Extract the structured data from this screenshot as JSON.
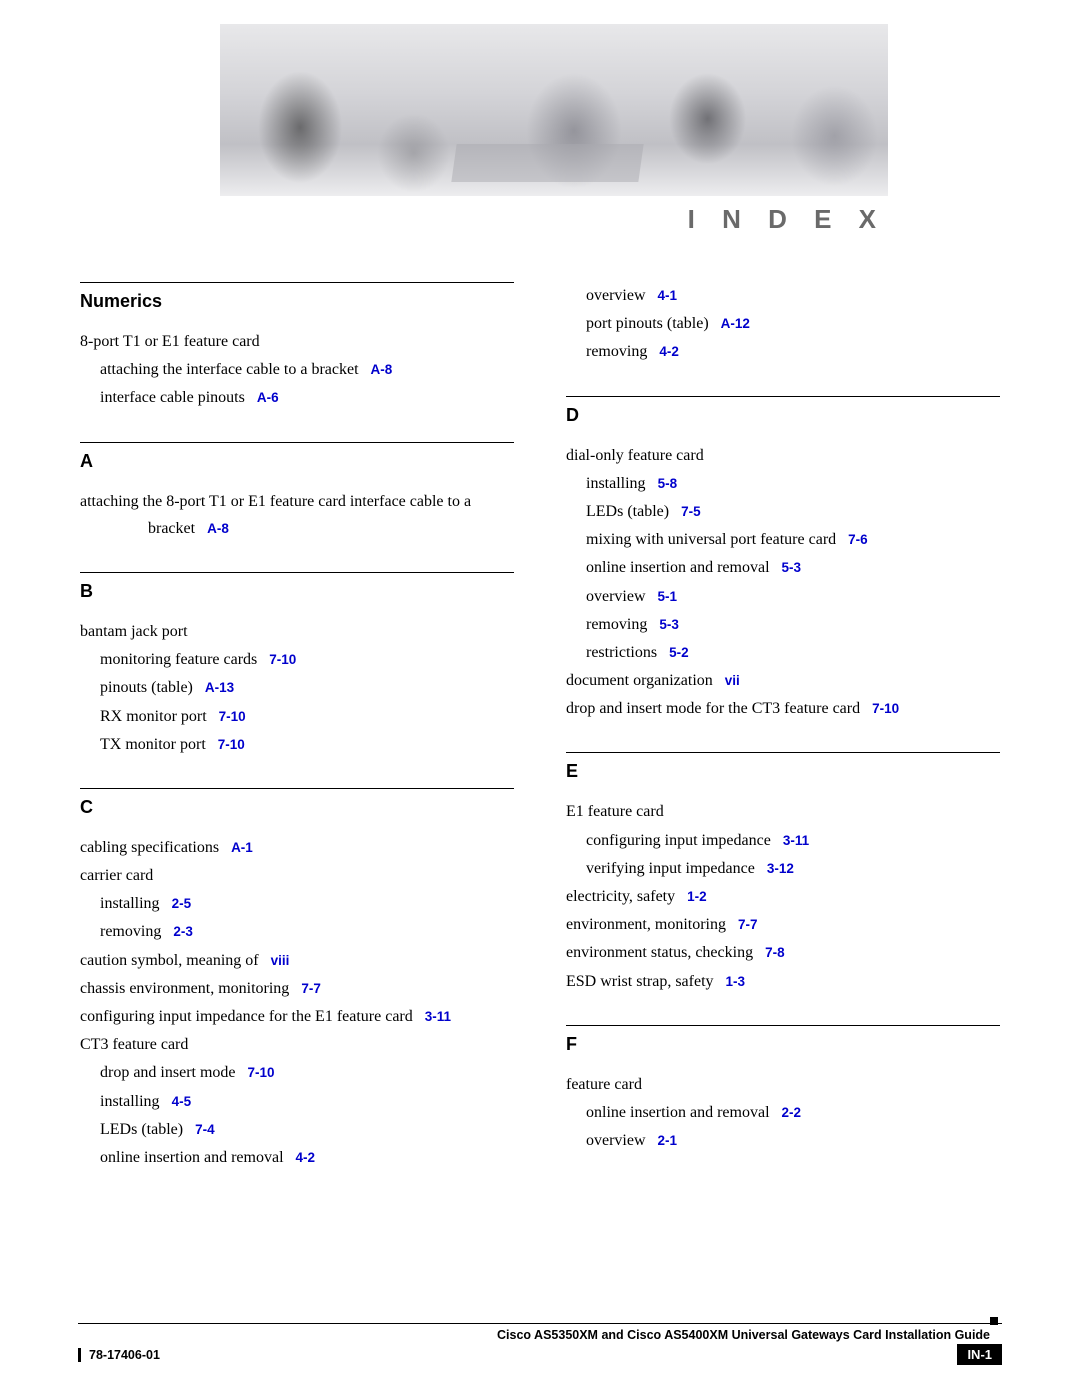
{
  "page": {
    "index_title": "I N D E X",
    "footer_title": "Cisco AS5350XM and Cisco AS5400XM Universal Gateways Card Installation Guide",
    "doc_number": "78-17406-01",
    "page_number": "IN-1"
  },
  "colors": {
    "link": "#0000cc",
    "text": "#000000",
    "heading_gray": "#6a6a6a",
    "banner_bg": "#d4d4d8",
    "page_bg": "#ffffff"
  },
  "left": {
    "sections": [
      {
        "head": "Numerics",
        "entries": [
          {
            "level": 1,
            "text": "8-port T1 or E1 feature card",
            "ref": null
          },
          {
            "level": 2,
            "text": "attaching the interface cable to a bracket",
            "ref": "A-8"
          },
          {
            "level": 2,
            "text": "interface cable pinouts",
            "ref": "A-6"
          }
        ]
      },
      {
        "head": "A",
        "entries": [
          {
            "level": 1,
            "hang": true,
            "text": "attaching the 8-port T1 or E1 feature card interface cable to a bracket",
            "ref": "A-8"
          }
        ]
      },
      {
        "head": "B",
        "entries": [
          {
            "level": 1,
            "text": "bantam jack port",
            "ref": null
          },
          {
            "level": 2,
            "text": "monitoring feature cards",
            "ref": "7-10"
          },
          {
            "level": 2,
            "text": "pinouts (table)",
            "ref": "A-13"
          },
          {
            "level": 2,
            "text": "RX monitor port",
            "ref": "7-10"
          },
          {
            "level": 2,
            "text": "TX monitor port",
            "ref": "7-10"
          }
        ]
      },
      {
        "head": "C",
        "entries": [
          {
            "level": 1,
            "text": "cabling specifications",
            "ref": "A-1"
          },
          {
            "level": 1,
            "text": "carrier card",
            "ref": null
          },
          {
            "level": 2,
            "text": "installing",
            "ref": "2-5"
          },
          {
            "level": 2,
            "text": "removing",
            "ref": "2-3"
          },
          {
            "level": 1,
            "text": "caution symbol, meaning of",
            "ref": "viii"
          },
          {
            "level": 1,
            "text": "chassis environment, monitoring",
            "ref": "7-7"
          },
          {
            "level": 1,
            "text": "configuring input impedance for the E1 feature card",
            "ref": "3-11"
          },
          {
            "level": 1,
            "text": "CT3 feature card",
            "ref": null
          },
          {
            "level": 2,
            "text": "drop and insert mode",
            "ref": "7-10"
          },
          {
            "level": 2,
            "text": "installing",
            "ref": "4-5"
          },
          {
            "level": 2,
            "text": "LEDs (table)",
            "ref": "7-4"
          },
          {
            "level": 2,
            "text": "online insertion and removal",
            "ref": "4-2"
          }
        ]
      }
    ]
  },
  "right": {
    "pre_entries": [
      {
        "level": 2,
        "text": "overview",
        "ref": "4-1"
      },
      {
        "level": 2,
        "text": "port pinouts (table)",
        "ref": "A-12"
      },
      {
        "level": 2,
        "text": "removing",
        "ref": "4-2"
      }
    ],
    "sections": [
      {
        "head": "D",
        "entries": [
          {
            "level": 1,
            "text": "dial-only feature card",
            "ref": null
          },
          {
            "level": 2,
            "text": "installing",
            "ref": "5-8"
          },
          {
            "level": 2,
            "text": "LEDs (table)",
            "ref": "7-5"
          },
          {
            "level": 2,
            "text": "mixing with universal port feature card",
            "ref": "7-6"
          },
          {
            "level": 2,
            "text": "online insertion and removal",
            "ref": "5-3"
          },
          {
            "level": 2,
            "text": "overview",
            "ref": "5-1"
          },
          {
            "level": 2,
            "text": "removing",
            "ref": "5-3"
          },
          {
            "level": 2,
            "text": "restrictions",
            "ref": "5-2"
          },
          {
            "level": 1,
            "text": "document organization",
            "ref": "vii"
          },
          {
            "level": 1,
            "text": "drop and insert mode for the CT3 feature card",
            "ref": "7-10"
          }
        ]
      },
      {
        "head": "E",
        "entries": [
          {
            "level": 1,
            "text": "E1 feature card",
            "ref": null
          },
          {
            "level": 2,
            "text": "configuring input impedance",
            "ref": "3-11"
          },
          {
            "level": 2,
            "text": "verifying input impedance",
            "ref": "3-12"
          },
          {
            "level": 1,
            "text": "electricity, safety",
            "ref": "1-2"
          },
          {
            "level": 1,
            "text": "environment, monitoring",
            "ref": "7-7"
          },
          {
            "level": 1,
            "text": "environment status, checking",
            "ref": "7-8"
          },
          {
            "level": 1,
            "text": "ESD wrist strap, safety",
            "ref": "1-3"
          }
        ]
      },
      {
        "head": "F",
        "entries": [
          {
            "level": 1,
            "text": "feature card",
            "ref": null
          },
          {
            "level": 2,
            "text": "online insertion and removal",
            "ref": "2-2"
          },
          {
            "level": 2,
            "text": "overview",
            "ref": "2-1"
          }
        ]
      }
    ]
  }
}
